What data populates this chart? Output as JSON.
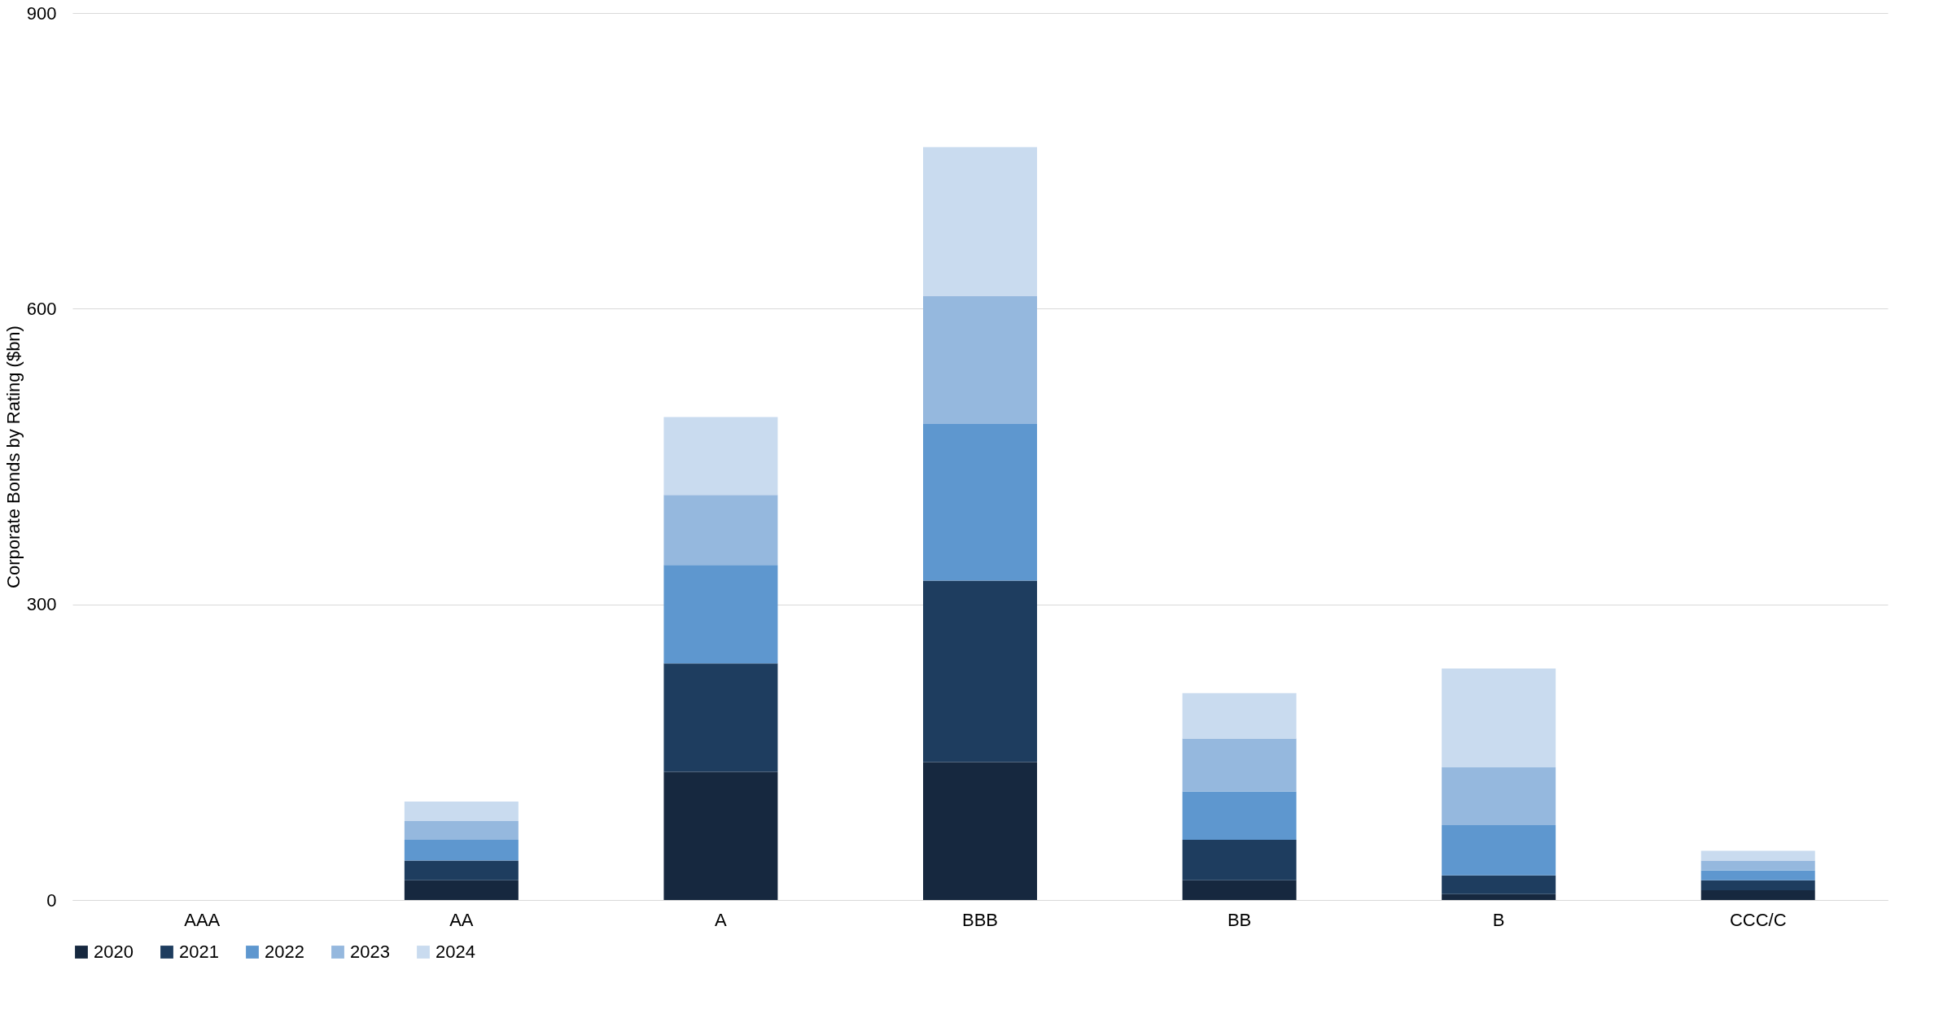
{
  "chart_data": {
    "type": "bar",
    "stacked": true,
    "ylabel": "Corporate Bonds by Rating ($bn)",
    "categories": [
      "AAA",
      "AA",
      "A",
      "BBB",
      "BB",
      "B",
      "CCC/C"
    ],
    "series": [
      {
        "name": "2020",
        "color": "#16283f",
        "values": [
          0,
          20,
          130,
          140,
          20,
          6,
          10
        ]
      },
      {
        "name": "2021",
        "color": "#1e3d5f",
        "values": [
          0,
          20,
          110,
          184,
          41,
          19,
          10
        ]
      },
      {
        "name": "2022",
        "color": "#5e97cf",
        "values": [
          0,
          21,
          100,
          159,
          49,
          51,
          10
        ]
      },
      {
        "name": "2023",
        "color": "#95b8de",
        "values": [
          0,
          19,
          71,
          130,
          54,
          59,
          10
        ]
      },
      {
        "name": "2024",
        "color": "#c9dbef",
        "values": [
          0,
          20,
          79,
          151,
          46,
          100,
          10
        ]
      }
    ],
    "ylim": [
      0,
      900
    ],
    "yticks": [
      0,
      300,
      600,
      900
    ],
    "grid": "y",
    "legend": "bottom"
  }
}
